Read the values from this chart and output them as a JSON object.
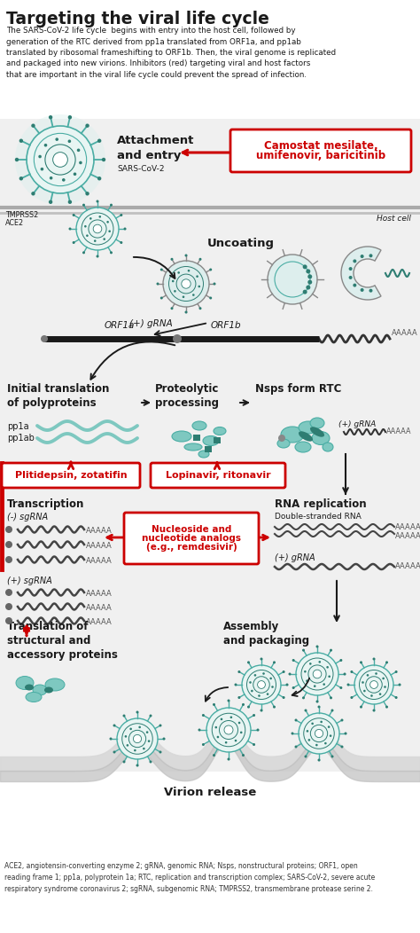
{
  "title": "Targeting the viral life cycle",
  "bg_color": "#ffffff",
  "teal_light": "#7ec8c0",
  "teal_mid": "#4aada4",
  "teal_dark": "#2e7d72",
  "red": "#cc0000",
  "dark": "#1a1a1a",
  "gray_bg": "#e8e8e8",
  "cell_bg": "#f2f2f2",
  "subtitle_lines": [
    "The SARS-CoV-2 life cycle  begins with entry into the host cell, followed by",
    "generation of the RTC derived from pp1a translated from ORF1a, and pp1ab",
    "translated by ribosomal frameshifting to ORF1b. Then, the viral genome is replicated",
    "and packaged into new virions. Inhibitors (red) targeting viral and host factors",
    "that are important in the viral life cycle could prevent the spread of infection."
  ],
  "footnote_lines": [
    "ACE2, angiotensin-converting enzyme 2; gRNA, genomic RNA; Nsps, nonstructural proteins; ORF1, open",
    "reading frame 1; pp1a, polyprotein 1a; RTC, replication and transcription complex; SARS-CoV-2, severe acute",
    "respiratory syndrome coronavirus 2; sgRNA, subgenomic RNA; TMPRSS2, transmembrane protease serine 2."
  ]
}
